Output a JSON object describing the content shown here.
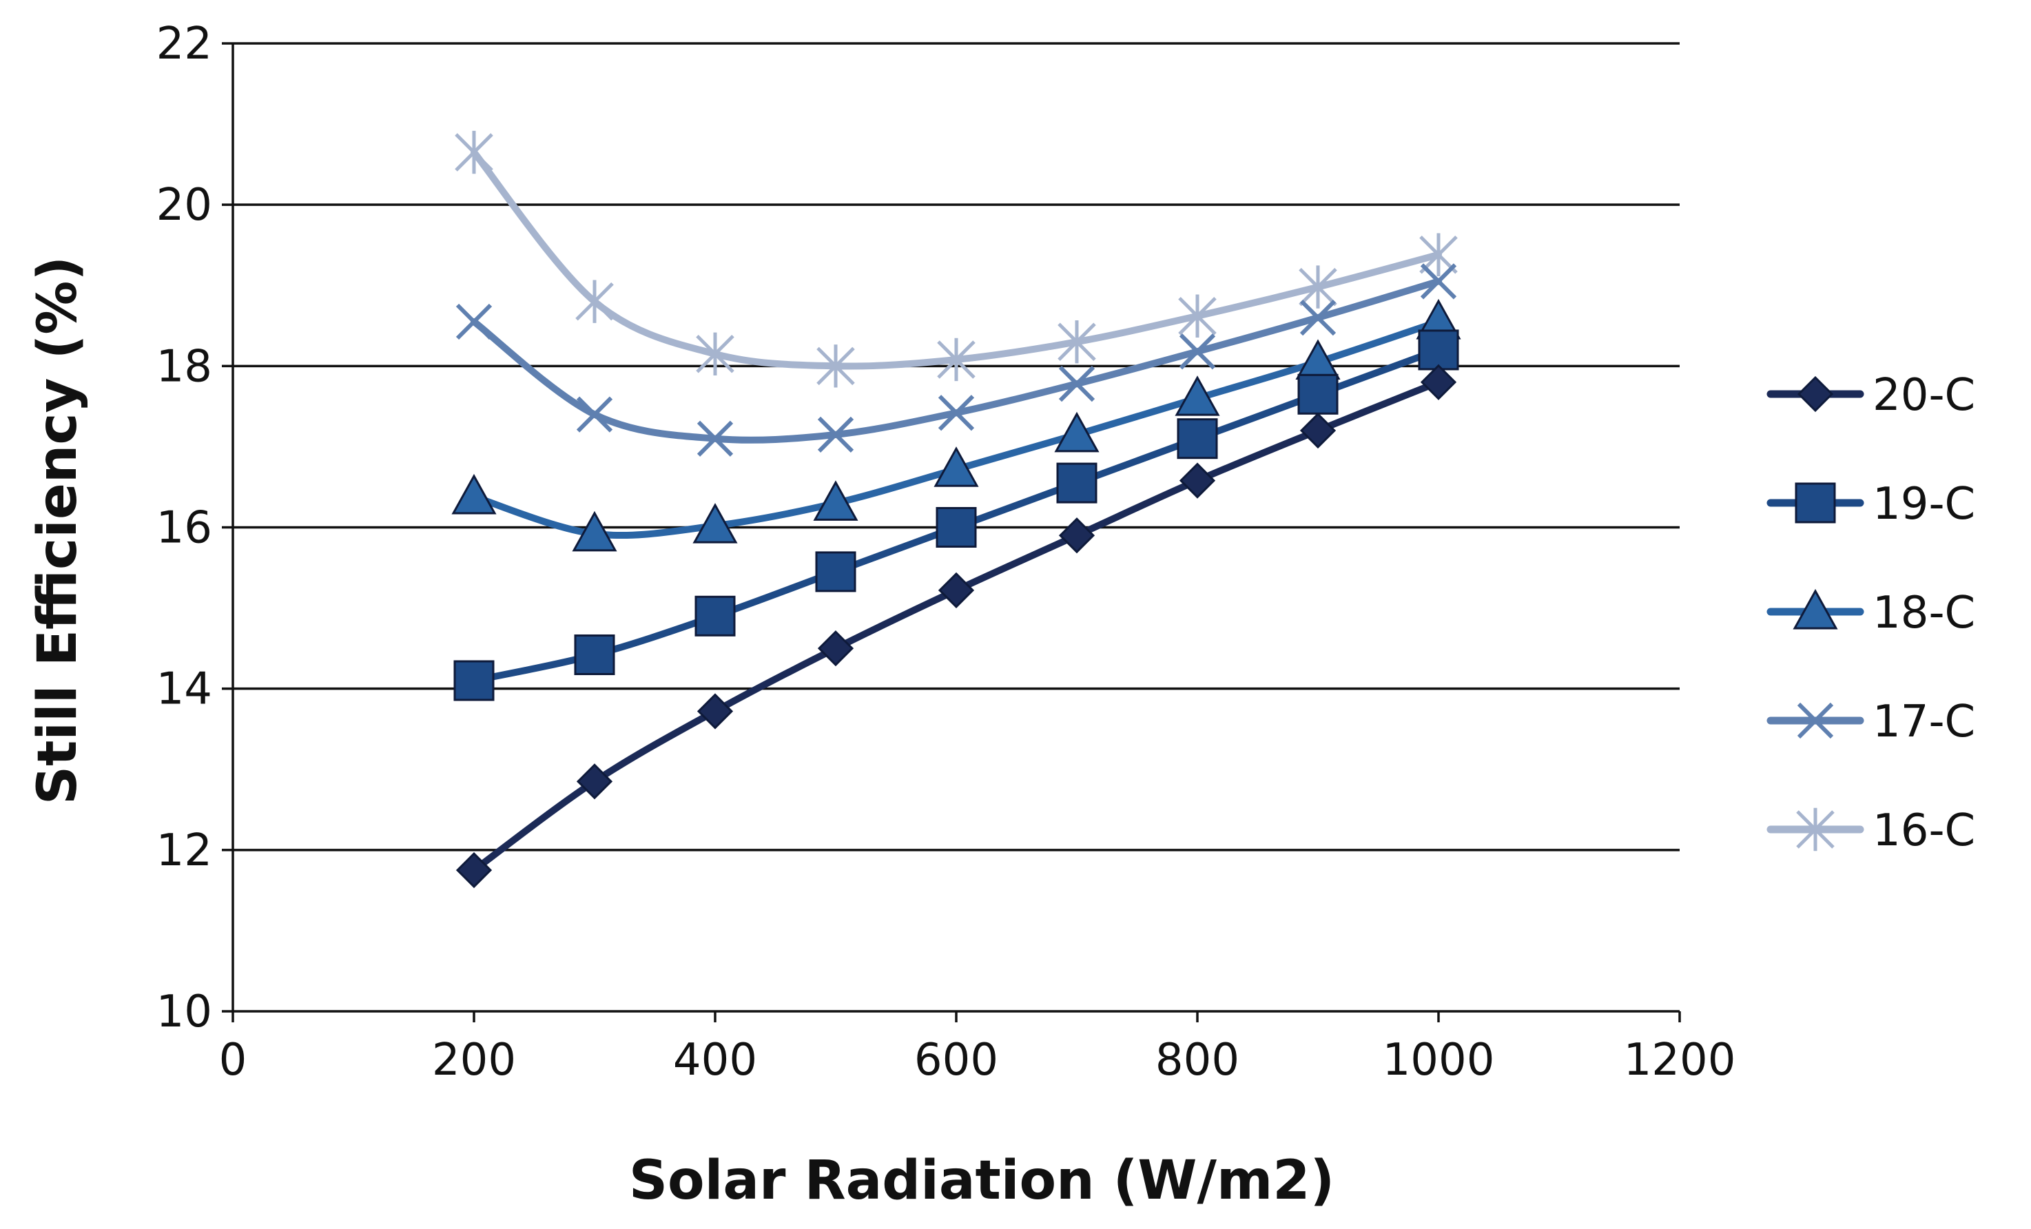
{
  "chart_data": {
    "type": "line",
    "title": "",
    "xlabel": "Solar Radiation (W/m2)",
    "ylabel": "Still Efficiency (%)",
    "xlim": [
      0,
      1200
    ],
    "ylim": [
      10,
      22
    ],
    "xticks": [
      0,
      200,
      400,
      600,
      800,
      1000,
      1200
    ],
    "yticks": [
      10,
      12,
      14,
      16,
      18,
      20,
      22
    ],
    "grid": "horizontal",
    "smooth": true,
    "legend_position": "right",
    "x": [
      200,
      300,
      400,
      500,
      600,
      700,
      800,
      900,
      1000
    ],
    "series": [
      {
        "name": "20-C",
        "marker": "diamond",
        "color": "#1b2a57",
        "values": [
          11.75,
          12.85,
          13.72,
          14.5,
          15.22,
          15.9,
          16.58,
          17.2,
          17.8
        ]
      },
      {
        "name": "19-C",
        "marker": "square",
        "color": "#1e4a86",
        "values": [
          14.1,
          14.42,
          14.9,
          15.45,
          16.0,
          16.55,
          17.1,
          17.65,
          18.2
        ]
      },
      {
        "name": "18-C",
        "marker": "triangle",
        "color": "#2a65a5",
        "values": [
          16.38,
          15.92,
          16.02,
          16.3,
          16.72,
          17.15,
          17.6,
          18.05,
          18.55
        ]
      },
      {
        "name": "17-C",
        "marker": "x",
        "color": "#5f80b0",
        "values": [
          18.55,
          17.4,
          17.1,
          17.15,
          17.42,
          17.78,
          18.18,
          18.6,
          19.05
        ]
      },
      {
        "name": "16-C",
        "marker": "asterisk",
        "color": "#a6b4ce",
        "values": [
          20.65,
          18.8,
          18.15,
          18.0,
          18.08,
          18.3,
          18.62,
          18.98,
          19.38
        ]
      }
    ]
  }
}
